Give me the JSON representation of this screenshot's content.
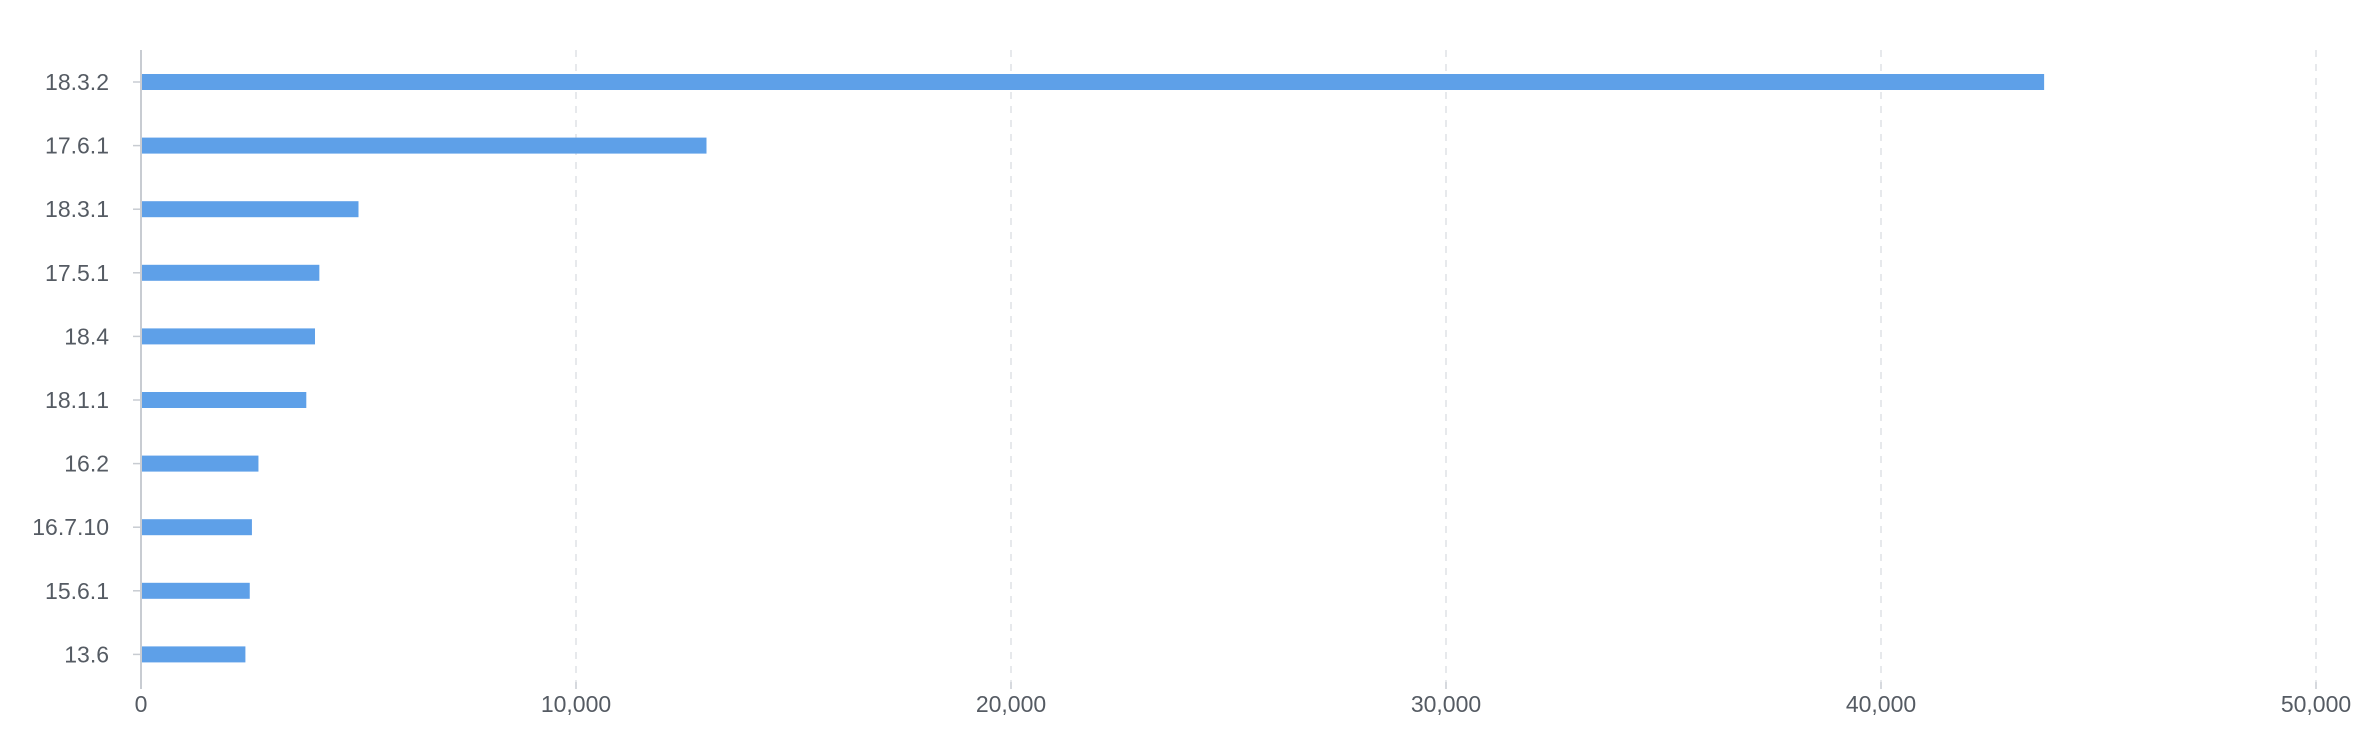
{
  "chart_data": {
    "type": "bar",
    "orientation": "horizontal",
    "title": "",
    "xlabel": "",
    "ylabel": "",
    "categories": [
      "18.3.2",
      "17.6.1",
      "18.3.1",
      "17.5.1",
      "18.4",
      "18.1.1",
      "16.2",
      "16.7.10",
      "15.6.1",
      "13.6"
    ],
    "values": [
      43750,
      13000,
      5000,
      4100,
      4000,
      3800,
      2700,
      2550,
      2500,
      2400
    ],
    "xlim": [
      0,
      50000
    ],
    "x_ticks": [
      0,
      10000,
      20000,
      30000,
      40000,
      50000
    ],
    "x_tick_labels": [
      "0",
      "10,000",
      "20,000",
      "30,000",
      "40,000",
      "50,000"
    ],
    "grid": "vertical dashed",
    "legend": "none",
    "bar_color": "#5ea0e8"
  }
}
